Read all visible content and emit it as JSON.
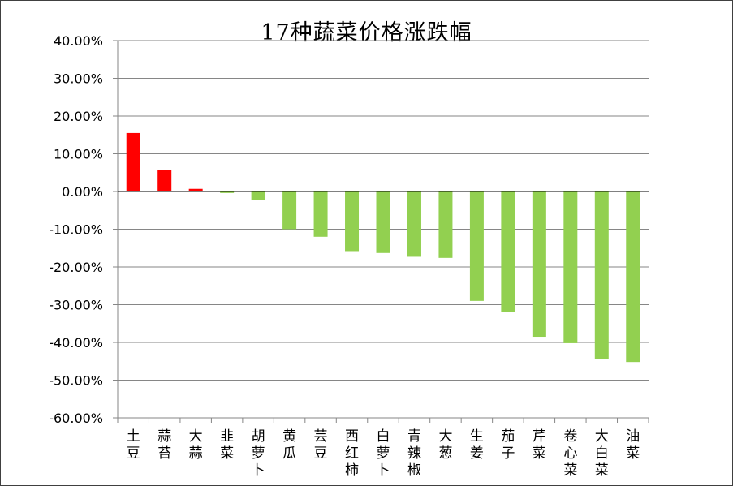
{
  "chart_data": {
    "type": "bar",
    "title": "17种蔬菜价格涨跌幅",
    "xlabel": "",
    "ylabel": "",
    "ylim": [
      -60,
      40
    ],
    "ytick_step": 10,
    "ytick_labels": [
      "40.00%",
      "30.00%",
      "20.00%",
      "10.00%",
      "0.00%",
      "-10.00%",
      "-20.00%",
      "-30.00%",
      "-40.00%",
      "-50.00%",
      "-60.00%"
    ],
    "grid": true,
    "legend": "none",
    "categories": [
      "土豆",
      "蒜苔",
      "大蒜",
      "韭菜",
      "胡萝卜",
      "黄瓜",
      "芸豆",
      "西红柿",
      "白萝卜",
      "青辣椒",
      "大葱",
      "生姜",
      "茄子",
      "芹菜",
      "卷心菜",
      "大白菜",
      "油菜"
    ],
    "values": [
      15.5,
      5.8,
      0.7,
      -0.4,
      -2.3,
      -10.0,
      -12.0,
      -15.8,
      -16.3,
      -17.3,
      -17.6,
      -29.0,
      -32.0,
      -38.5,
      -40.2,
      -44.3,
      -45.2
    ],
    "colors": {
      "positive": "#ff0000",
      "negative": "#92d050"
    }
  }
}
